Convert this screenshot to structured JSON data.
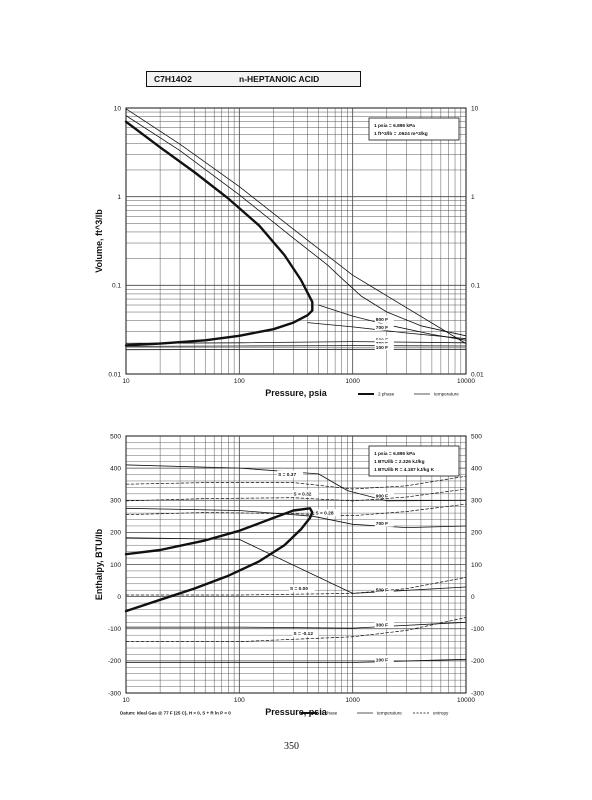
{
  "header": {
    "formula": "C7H14O2",
    "name": "n-HEPTANOIC ACID"
  },
  "page_number": "350",
  "chart_data": [
    {
      "type": "line",
      "title": "",
      "xlabel": "Pressure, psia",
      "ylabel": "Volume, ft^3/lb",
      "xscale": "log",
      "yscale": "log",
      "xlim": [
        10,
        10000
      ],
      "ylim": [
        0.01,
        10
      ],
      "x_ticks": [
        "10",
        "100",
        "1000",
        "10000"
      ],
      "y_ticks_left": [
        "0.01",
        "0.1",
        "1",
        "10"
      ],
      "y_ticks_right": [
        "0.01",
        "0.1",
        "1",
        "10"
      ],
      "grid": true,
      "conversion_box": [
        "1 psia = 6.895 kPa",
        "1 ft^3/lb = .0624 m^3/kg"
      ],
      "legend": [
        {
          "label": "2 phase",
          "style": "thick"
        },
        {
          "label": "temperature",
          "style": "thin"
        }
      ],
      "legend_position": "below-right",
      "series": [
        {
          "name": "2 phase",
          "style": "thick",
          "x": [
            10,
            20,
            40,
            80,
            150,
            250,
            350,
            440,
            440,
            400,
            300,
            200,
            100,
            50,
            20,
            10
          ],
          "y": [
            7,
            3.6,
            1.9,
            0.95,
            0.47,
            0.22,
            0.115,
            0.065,
            0.052,
            0.046,
            0.038,
            0.032,
            0.027,
            0.024,
            0.022,
            0.021
          ]
        },
        {
          "name": "",
          "style": "thin",
          "x": [
            10,
            30,
            100,
            300,
            600,
            800,
            1200,
            2000,
            4000,
            10000
          ],
          "y": [
            8.2,
            3.3,
            1.05,
            0.34,
            0.17,
            0.12,
            0.075,
            0.05,
            0.035,
            0.027
          ]
        },
        {
          "name": "",
          "style": "thin",
          "x": [
            10,
            30,
            100,
            300,
            1000,
            10000
          ],
          "y": [
            9.8,
            3.9,
            1.3,
            0.43,
            0.13,
            0.022
          ]
        },
        {
          "label": "800 F",
          "style": "thin",
          "x": [
            500,
            1000,
            2000,
            5000,
            10000
          ],
          "y": [
            0.06,
            0.045,
            0.036,
            0.028,
            0.024
          ]
        },
        {
          "label": "700 F",
          "style": "thin",
          "x": [
            400,
            1000,
            3000,
            10000
          ],
          "y": [
            0.038,
            0.034,
            0.029,
            0.025
          ]
        },
        {
          "label": "500 F",
          "style": "thin",
          "x": [
            10,
            100,
            1000,
            10000
          ],
          "y": [
            0.0222,
            0.0225,
            0.0232,
            0.0225
          ]
        },
        {
          "label": "300 F",
          "style": "thin",
          "x": [
            10,
            100,
            1000,
            10000
          ],
          "y": [
            0.0205,
            0.0207,
            0.0209,
            0.0207
          ]
        },
        {
          "label": "100 F",
          "style": "thin",
          "x": [
            10,
            100,
            1000,
            10000
          ],
          "y": [
            0.0188,
            0.0189,
            0.019,
            0.019
          ]
        }
      ]
    },
    {
      "type": "line",
      "title": "",
      "xlabel": "Pressure, psia",
      "ylabel": "Enthalpy, BTU/lb",
      "xscale": "log",
      "xlim": [
        10,
        10000
      ],
      "ylim": [
        -300,
        500
      ],
      "x_ticks": [
        "10",
        "100",
        "1000",
        "10000"
      ],
      "y_ticks_left": [
        "-300",
        "-200",
        "-100",
        "0",
        "100",
        "200",
        "300",
        "400",
        "500"
      ],
      "y_ticks_right": [
        "-300",
        "-200",
        "-100",
        "0",
        "100",
        "200",
        "300",
        "400",
        "500"
      ],
      "grid": true,
      "conversion_box": [
        "1 psia = 6.895 kPa",
        "1 BTU/lb = 2.326 kJ/kg",
        "1 BTU/lb R = 4.187 kJ/kg K"
      ],
      "footnote": "Datum: Ideal Gas @ 77 F (25 C), H = 0, S + R ln P = 0",
      "legend": [
        {
          "label": "2 phase",
          "style": "thick"
        },
        {
          "label": "temperature",
          "style": "thin"
        },
        {
          "label": "entropy",
          "style": "dashed"
        }
      ],
      "legend_position": "below-right",
      "series": [
        {
          "name": "2 phase",
          "style": "thick",
          "x": [
            10,
            20,
            40,
            80,
            150,
            250,
            350,
            420,
            440,
            420,
            300,
            200,
            100,
            50,
            20,
            10
          ],
          "y": [
            -45,
            -10,
            25,
            65,
            110,
            160,
            210,
            245,
            262,
            275,
            268,
            245,
            205,
            175,
            145,
            132
          ]
        },
        {
          "label": "900 F",
          "style": "thin",
          "x": [
            10,
            100,
            500,
            900,
            2000,
            10000
          ],
          "y": [
            410,
            400,
            382,
            330,
            298,
            300
          ]
        },
        {
          "label": "700 F",
          "style": "thin",
          "x": [
            10,
            100,
            450,
            1000,
            3000,
            10000
          ],
          "y": [
            275,
            268,
            250,
            225,
            215,
            220
          ]
        },
        {
          "label": "500 F",
          "style": "thin",
          "x": [
            10,
            100,
            1000,
            10000
          ],
          "y": [
            183,
            178,
            10,
            30
          ]
        },
        {
          "label": "300 F",
          "style": "thin",
          "x": [
            10,
            100,
            1000,
            10000
          ],
          "y": [
            -95,
            -95,
            -98,
            -80
          ]
        },
        {
          "label": "100 F",
          "style": "thin",
          "x": [
            10,
            100,
            1000,
            10000
          ],
          "y": [
            -205,
            -205,
            -205,
            -195
          ]
        },
        {
          "label": "S = 0.37",
          "style": "dashed",
          "x": [
            10,
            50,
            300,
            1000,
            3000,
            10000
          ],
          "y": [
            350,
            355,
            355,
            335,
            345,
            375
          ]
        },
        {
          "label": "S = 0.32",
          "style": "dashed",
          "x": [
            10,
            50,
            300,
            1000,
            3000,
            10000
          ],
          "y": [
            298,
            305,
            308,
            298,
            310,
            335
          ]
        },
        {
          "label": "S = 0.28",
          "style": "dashed",
          "x": [
            10,
            50,
            300,
            1000,
            3000,
            10000
          ],
          "y": [
            255,
            262,
            258,
            252,
            265,
            288
          ]
        },
        {
          "label": "S = 0.00",
          "style": "dashed",
          "x": [
            10,
            100,
            1000,
            3000,
            10000
          ],
          "y": [
            5,
            5,
            10,
            25,
            60
          ]
        },
        {
          "label": "S = -0.12",
          "style": "dashed",
          "x": [
            10,
            100,
            1000,
            3000,
            10000
          ],
          "y": [
            -140,
            -140,
            -125,
            -105,
            -65
          ]
        }
      ],
      "annotations": [
        {
          "text": "S = 0.37",
          "x": 220,
          "y": 375
        },
        {
          "text": "S = 0.32",
          "x": 300,
          "y": 315
        },
        {
          "text": "S = 0.28",
          "x": 470,
          "y": 255
        },
        {
          "text": "S = 0.00",
          "x": 280,
          "y": 20
        },
        {
          "text": "S = -0.12",
          "x": 300,
          "y": -120
        }
      ]
    }
  ]
}
